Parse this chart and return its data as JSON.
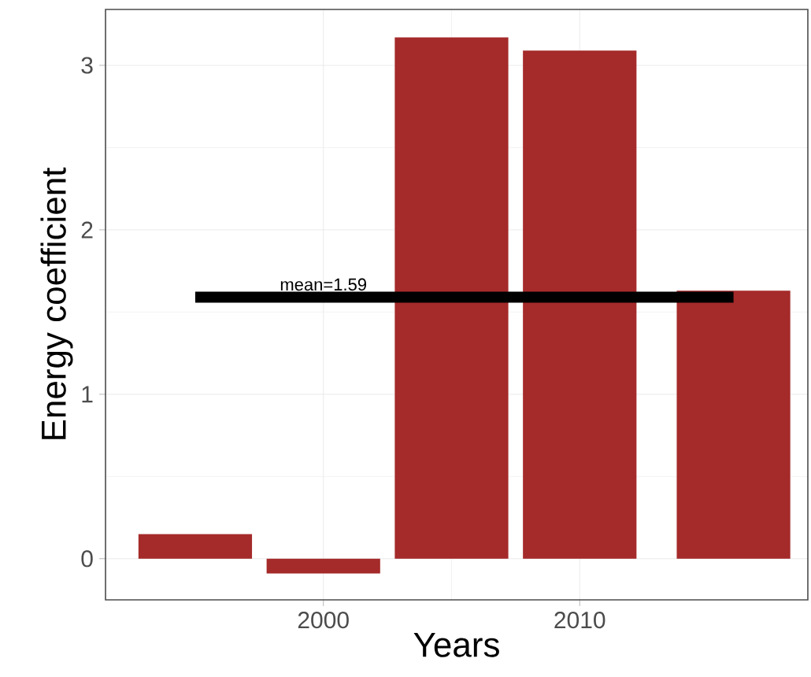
{
  "chart_data": {
    "type": "bar",
    "xlabel": "Years",
    "ylabel": "Energy coefficient",
    "x": [
      1995,
      2000,
      2005,
      2010,
      2016
    ],
    "series": [
      {
        "color": "#a52a2a",
        "values": [
          0.15,
          -0.09,
          3.17,
          3.09,
          1.63
        ]
      },
      {
        "type": "line",
        "color": "#000000",
        "x": [
          1995,
          2016
        ],
        "values": [
          1.59,
          1.59
        ]
      }
    ],
    "annotations": [
      {
        "text": "mean=1.59",
        "x": 2000,
        "y": 1.59
      }
    ],
    "xlim": [
      1991.5,
      2018.9
    ],
    "ylim": [
      -0.25,
      3.34
    ],
    "xticks": [
      2000,
      2010
    ],
    "yticks": [
      0,
      1,
      2,
      3
    ],
    "grid": true
  }
}
